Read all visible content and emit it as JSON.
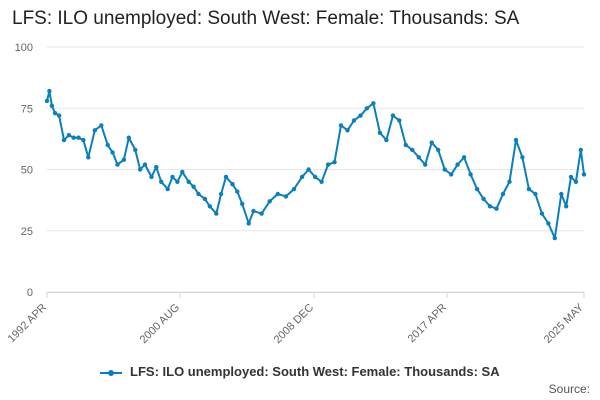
{
  "title": "LFS: ILO unemployed: South West: Female: Thousands: SA",
  "source_label": "Source:",
  "colors": {
    "series": "#0a7fbe",
    "grid": "#e6e6e6",
    "axis": "#ccd6eb"
  },
  "chart_data": {
    "type": "line",
    "title": "LFS: ILO unemployed: South West: Female: Thousands: SA",
    "xlabel": "",
    "ylabel": "",
    "ylim": [
      0,
      100
    ],
    "yticks": [
      0,
      25,
      50,
      75,
      100
    ],
    "grid": true,
    "legend_position": "bottom-center",
    "x_tick_labels": [
      "1992 APR",
      "2000 AUG",
      "2008 DEC",
      "2017 APR",
      "2025 MAY"
    ],
    "series": [
      {
        "name": "LFS: ILO unemployed: South West: Female: Thousands: SA",
        "x": [
          1992.25,
          1992.4,
          1992.55,
          1992.75,
          1993.0,
          1993.3,
          1993.6,
          1993.9,
          1994.2,
          1994.5,
          1994.8,
          1995.2,
          1995.6,
          1996.0,
          1996.3,
          1996.6,
          1997.0,
          1997.3,
          1997.7,
          1998.0,
          1998.3,
          1998.7,
          1999.0,
          1999.3,
          1999.7,
          2000.0,
          2000.3,
          2000.6,
          2001.0,
          2001.3,
          2001.6,
          2002.0,
          2002.3,
          2002.7,
          2003.0,
          2003.3,
          2003.7,
          2004.0,
          2004.3,
          2004.7,
          2005.0,
          2005.5,
          2006.0,
          2006.5,
          2007.0,
          2007.5,
          2008.0,
          2008.4,
          2008.8,
          2009.2,
          2009.6,
          2010.0,
          2010.4,
          2010.8,
          2011.2,
          2011.6,
          2012.0,
          2012.4,
          2012.8,
          2013.2,
          2013.6,
          2014.0,
          2014.4,
          2014.8,
          2015.2,
          2015.6,
          2016.0,
          2016.4,
          2016.8,
          2017.2,
          2017.6,
          2018.0,
          2018.4,
          2018.8,
          2019.2,
          2019.6,
          2020.0,
          2020.4,
          2020.8,
          2021.2,
          2021.6,
          2022.0,
          2022.4,
          2022.8,
          2023.2,
          2023.6,
          2024.0,
          2024.3,
          2024.6,
          2024.9,
          2025.2,
          2025.4
        ],
        "values": [
          78,
          82,
          76,
          73,
          72,
          62,
          64,
          63,
          63,
          62,
          55,
          66,
          68,
          60,
          57,
          52,
          54,
          63,
          58,
          50,
          52,
          47,
          51,
          45,
          42,
          47,
          45,
          49,
          45,
          43,
          40,
          38,
          35,
          32,
          40,
          47,
          44,
          41,
          36,
          28,
          33,
          32,
          37,
          40,
          39,
          42,
          47,
          50,
          47,
          45,
          52,
          53,
          68,
          66,
          70,
          72,
          75,
          77,
          65,
          62,
          72,
          70,
          60,
          58,
          55,
          52,
          61,
          58,
          50,
          48,
          52,
          55,
          48,
          42,
          38,
          35,
          34,
          40,
          45,
          62,
          55,
          42,
          40,
          32,
          28,
          22,
          40,
          35,
          47,
          45,
          58,
          48
        ]
      }
    ]
  }
}
